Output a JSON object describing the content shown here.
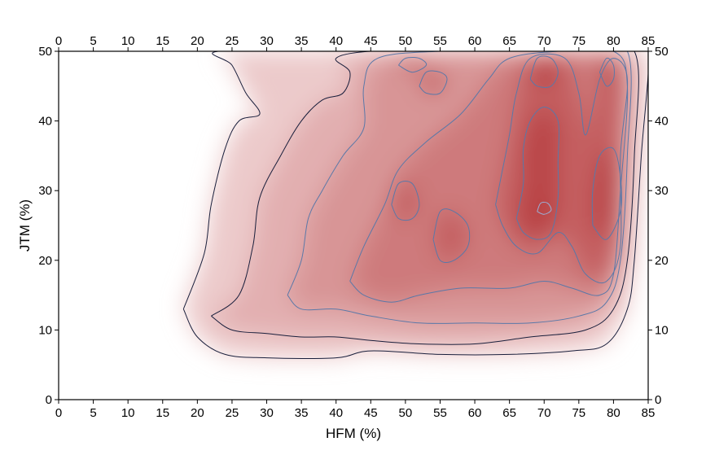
{
  "chart_data": {
    "type": "heatmap",
    "title": "",
    "xlabel": "HFM (%)",
    "ylabel": "JTM (%)",
    "xlim": [
      0,
      85
    ],
    "ylim": [
      0,
      50
    ],
    "x_ticks": [
      0,
      5,
      10,
      15,
      20,
      25,
      30,
      35,
      40,
      45,
      50,
      55,
      60,
      65,
      70,
      75,
      80,
      85
    ],
    "y_ticks": [
      0,
      10,
      20,
      30,
      40,
      50
    ],
    "mirror_ticks": true,
    "colors": {
      "low": "#ffffff",
      "high": "#b0282a",
      "outer_contour": "#1a1f3c",
      "inner_contour": "#5a78a8",
      "peak_contour": "#9bb0d8"
    },
    "density_peaks": [
      {
        "x": 70,
        "y": 35,
        "weight": 1.0
      },
      {
        "x": 70,
        "y": 28,
        "weight": 1.0
      },
      {
        "x": 79,
        "y": 31,
        "weight": 0.85
      },
      {
        "x": 79,
        "y": 46,
        "weight": 0.7
      },
      {
        "x": 70,
        "y": 46,
        "weight": 0.7
      },
      {
        "x": 50,
        "y": 27,
        "weight": 0.55
      },
      {
        "x": 50,
        "y": 19,
        "weight": 0.5
      },
      {
        "x": 60,
        "y": 30,
        "weight": 0.55
      },
      {
        "x": 38,
        "y": 19,
        "weight": 0.35
      },
      {
        "x": 52,
        "y": 47,
        "weight": 0.4
      },
      {
        "x": 28,
        "y": 25,
        "weight": 0.22
      }
    ],
    "contours": [
      {
        "level": 1,
        "path": [
          [
            18,
            13
          ],
          [
            21,
            21
          ],
          [
            22,
            28
          ],
          [
            24,
            36
          ],
          [
            26,
            40
          ],
          [
            29,
            41
          ],
          [
            27,
            44
          ],
          [
            25,
            48
          ],
          [
            23,
            50
          ],
          [
            40,
            50
          ],
          [
            45,
            50
          ],
          [
            48,
            50
          ],
          [
            56,
            50
          ],
          [
            66,
            50
          ],
          [
            72,
            50
          ],
          [
            78,
            50
          ],
          [
            82,
            50
          ],
          [
            85,
            50
          ],
          [
            84,
            35
          ],
          [
            83,
            20
          ],
          [
            82,
            13
          ],
          [
            79,
            8
          ],
          [
            74,
            7
          ],
          [
            65,
            6.5
          ],
          [
            55,
            6.5
          ],
          [
            45,
            7
          ],
          [
            40,
            6
          ],
          [
            30,
            6
          ],
          [
            24,
            6.5
          ],
          [
            20,
            9
          ],
          [
            18,
            13
          ]
        ]
      },
      {
        "level": 2,
        "path": [
          [
            22,
            12
          ],
          [
            26,
            15
          ],
          [
            28,
            22
          ],
          [
            29,
            29
          ],
          [
            32,
            35
          ],
          [
            35,
            40
          ],
          [
            38,
            43
          ],
          [
            41,
            44
          ],
          [
            42,
            47
          ],
          [
            40,
            49
          ],
          [
            45,
            50
          ],
          [
            55,
            50
          ],
          [
            65,
            50
          ],
          [
            75,
            50
          ],
          [
            83,
            50
          ],
          [
            83,
            35
          ],
          [
            82,
            20
          ],
          [
            80,
            13
          ],
          [
            76,
            10
          ],
          [
            68,
            9
          ],
          [
            60,
            8
          ],
          [
            52,
            8
          ],
          [
            45,
            8.5
          ],
          [
            40,
            9
          ],
          [
            35,
            9
          ],
          [
            30,
            9.5
          ],
          [
            25,
            10
          ],
          [
            22,
            12
          ]
        ]
      },
      {
        "level": 3,
        "path": [
          [
            33,
            15
          ],
          [
            35,
            20
          ],
          [
            36,
            26
          ],
          [
            38,
            30
          ],
          [
            41,
            35
          ],
          [
            44,
            39
          ],
          [
            44,
            45
          ],
          [
            46,
            49
          ],
          [
            55,
            50
          ],
          [
            65,
            50
          ],
          [
            75,
            50
          ],
          [
            82,
            50
          ],
          [
            82,
            35
          ],
          [
            81,
            20
          ],
          [
            79,
            14
          ],
          [
            75,
            12
          ],
          [
            68,
            11
          ],
          [
            60,
            11
          ],
          [
            52,
            11
          ],
          [
            45,
            12
          ],
          [
            40,
            13
          ],
          [
            35,
            13
          ],
          [
            33,
            15
          ]
        ]
      },
      {
        "level": 4,
        "path": [
          [
            42,
            17
          ],
          [
            44,
            22
          ],
          [
            47,
            28
          ],
          [
            49,
            33
          ],
          [
            53,
            37
          ],
          [
            58,
            41
          ],
          [
            62,
            46
          ],
          [
            65,
            49
          ],
          [
            72,
            50
          ],
          [
            80,
            50
          ],
          [
            82,
            45
          ],
          [
            81,
            30
          ],
          [
            80,
            18
          ],
          [
            78,
            15
          ],
          [
            74,
            16
          ],
          [
            70,
            17
          ],
          [
            65,
            16
          ],
          [
            58,
            16
          ],
          [
            52,
            15
          ],
          [
            48,
            14
          ],
          [
            44,
            15
          ],
          [
            42,
            17
          ]
        ]
      },
      {
        "level": 5,
        "path": [
          [
            63,
            28
          ],
          [
            64,
            33
          ],
          [
            65,
            38
          ],
          [
            66,
            44
          ],
          [
            68,
            49
          ],
          [
            73,
            49
          ],
          [
            75,
            44
          ],
          [
            76,
            38
          ],
          [
            78,
            46
          ],
          [
            80,
            49
          ],
          [
            82,
            46
          ],
          [
            81,
            35
          ],
          [
            81,
            22
          ],
          [
            79,
            17
          ],
          [
            76,
            18
          ],
          [
            74,
            22
          ],
          [
            72,
            24
          ],
          [
            69,
            21
          ],
          [
            66,
            22
          ],
          [
            64,
            25
          ],
          [
            63,
            28
          ]
        ]
      },
      {
        "level": 6,
        "path": [
          [
            66,
            26
          ],
          [
            67,
            31
          ],
          [
            67,
            36
          ],
          [
            68,
            40
          ],
          [
            70,
            42
          ],
          [
            72,
            40
          ],
          [
            72,
            34
          ],
          [
            72,
            29
          ],
          [
            71,
            24
          ],
          [
            69,
            23
          ],
          [
            67,
            24
          ],
          [
            66,
            26
          ]
        ]
      },
      {
        "level": 6,
        "path": [
          [
            77,
            25
          ],
          [
            77,
            30
          ],
          [
            78,
            35
          ],
          [
            80,
            36
          ],
          [
            81,
            32
          ],
          [
            81,
            27
          ],
          [
            79,
            23
          ],
          [
            77,
            25
          ]
        ]
      },
      {
        "level": 6,
        "path": [
          [
            68,
            46
          ],
          [
            69,
            49
          ],
          [
            71,
            49
          ],
          [
            72,
            47
          ],
          [
            71,
            45
          ],
          [
            69,
            45
          ],
          [
            68,
            46
          ]
        ]
      },
      {
        "level": 6,
        "path": [
          [
            78,
            47
          ],
          [
            79,
            49
          ],
          [
            80,
            48
          ],
          [
            80,
            46
          ],
          [
            79,
            45
          ],
          [
            78,
            47
          ]
        ]
      },
      {
        "level": 5,
        "path": [
          [
            48,
            28
          ],
          [
            49,
            31
          ],
          [
            51,
            31
          ],
          [
            52,
            28
          ],
          [
            51,
            26
          ],
          [
            49,
            26
          ],
          [
            48,
            28
          ]
        ]
      },
      {
        "level": 5,
        "path": [
          [
            54,
            23
          ],
          [
            55,
            27
          ],
          [
            57,
            27
          ],
          [
            59,
            25
          ],
          [
            59,
            22
          ],
          [
            57,
            20
          ],
          [
            55,
            20
          ],
          [
            54,
            23
          ]
        ]
      },
      {
        "level": 5,
        "path": [
          [
            52,
            45
          ],
          [
            53,
            47
          ],
          [
            55,
            47
          ],
          [
            56,
            46
          ],
          [
            55,
            44
          ],
          [
            53,
            44
          ],
          [
            52,
            45
          ]
        ]
      },
      {
        "level": 5,
        "path": [
          [
            49,
            48
          ],
          [
            50,
            49
          ],
          [
            52,
            49
          ],
          [
            53,
            48
          ],
          [
            51,
            47
          ],
          [
            49,
            48
          ]
        ]
      },
      {
        "level": 7,
        "path": [
          [
            69,
            27
          ],
          [
            69.5,
            28.2
          ],
          [
            70.5,
            28.2
          ],
          [
            71,
            27.2
          ],
          [
            70,
            26.6
          ],
          [
            69,
            27
          ]
        ]
      }
    ]
  }
}
